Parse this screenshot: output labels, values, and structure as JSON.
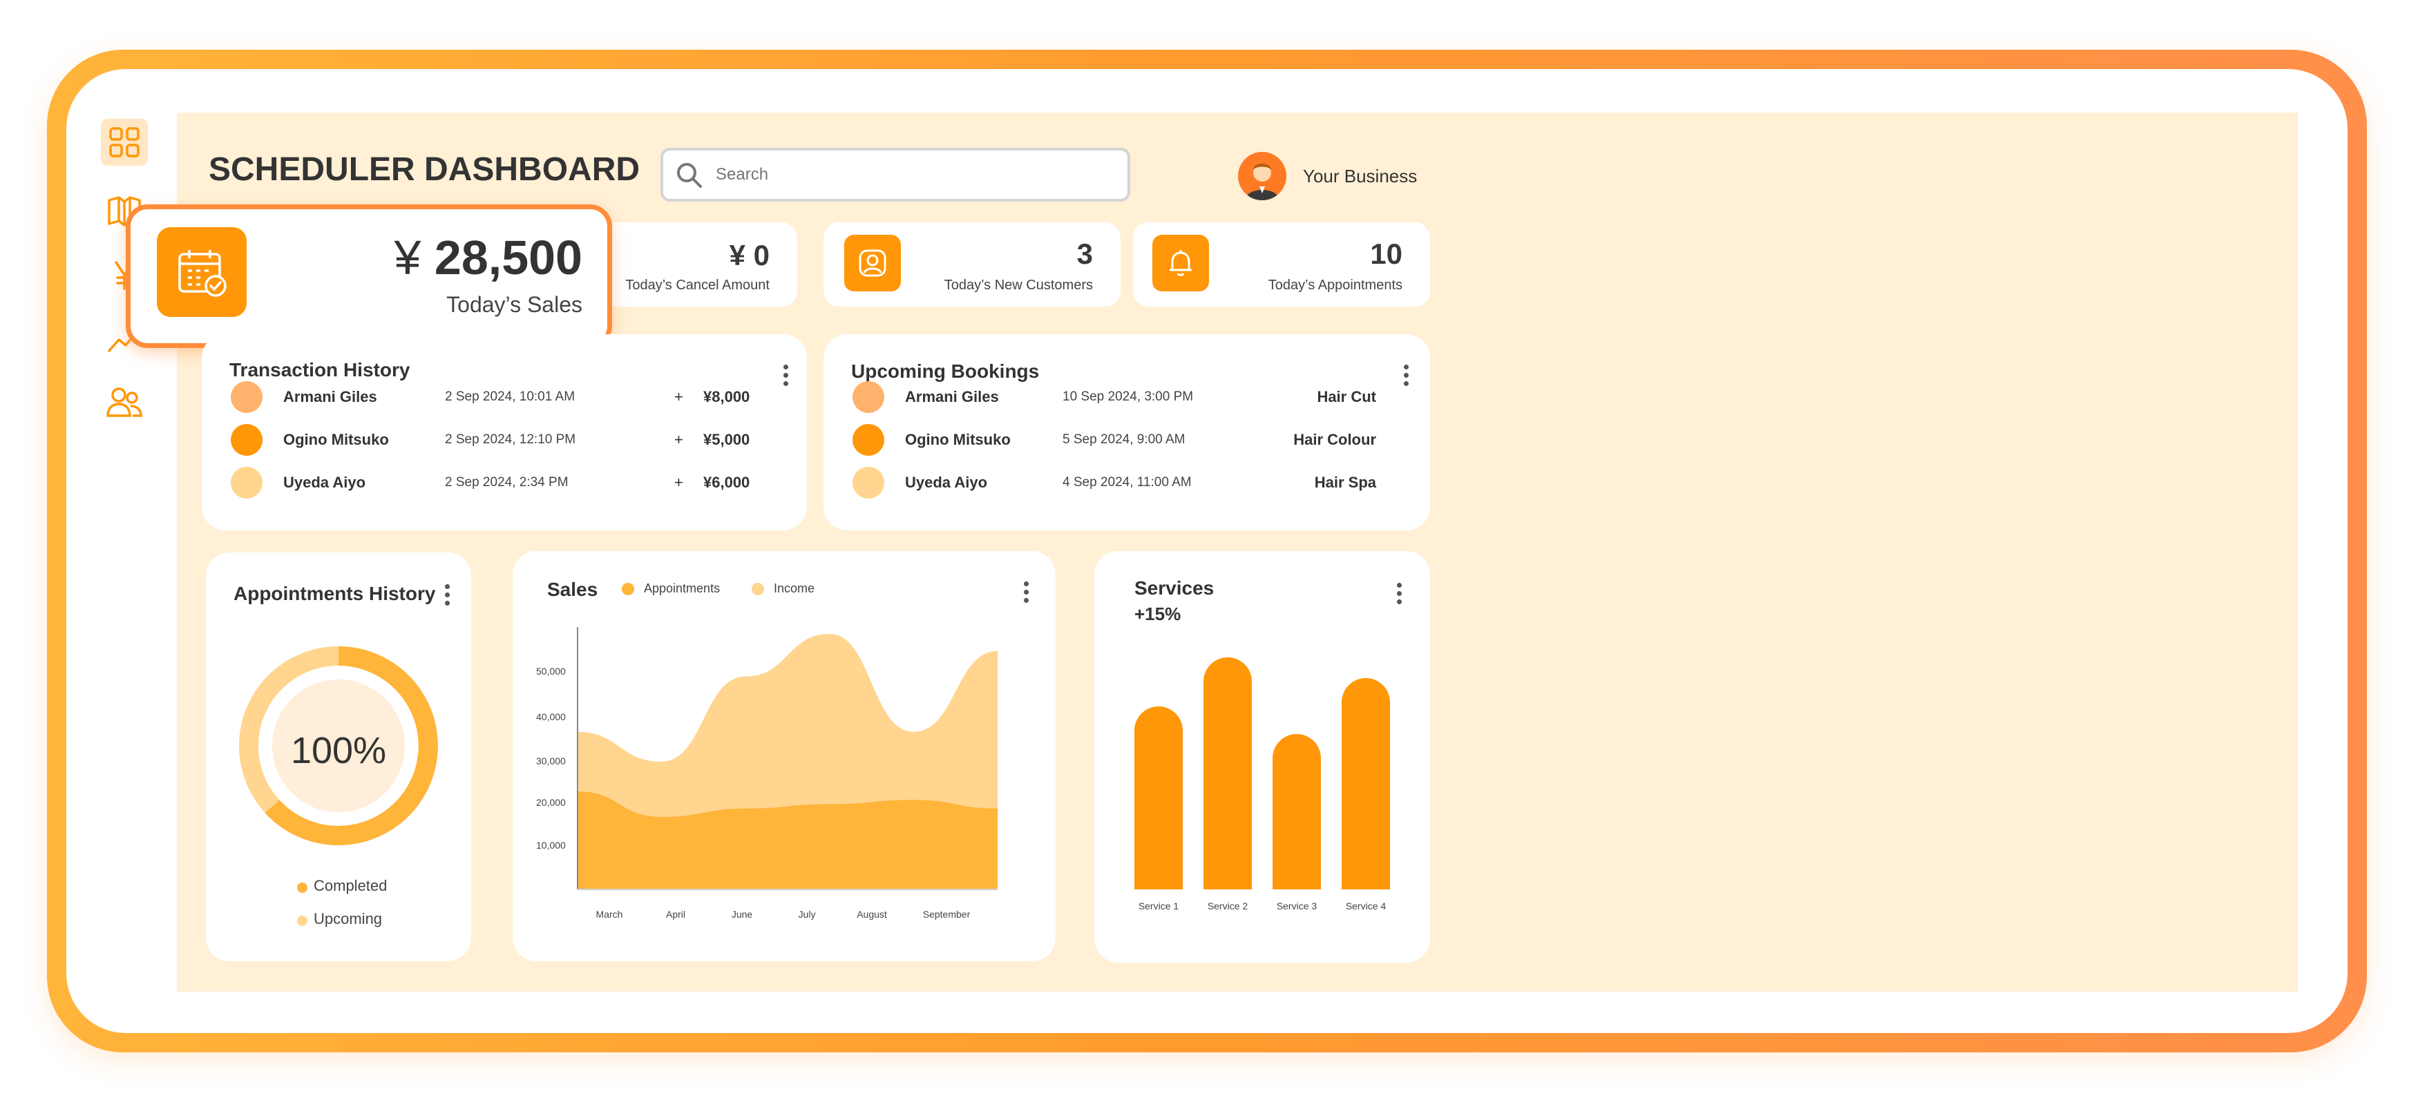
{
  "header": {
    "title": "SCHEDULER DASHBOARD",
    "search_placeholder": "Search",
    "business_name": "Your Business"
  },
  "sidebar": {
    "items": [
      {
        "icon": "grid-icon",
        "active": true
      },
      {
        "icon": "book-icon"
      },
      {
        "icon": "yen-icon"
      },
      {
        "icon": "trend-icon"
      },
      {
        "icon": "users-icon"
      }
    ]
  },
  "stats": {
    "sales": {
      "currency": "¥",
      "value": "28,500",
      "label": "Today’s Sales"
    },
    "cancel": {
      "currency": "¥",
      "value": "0",
      "label": "Today’s Cancel Amount"
    },
    "customers": {
      "value": "3",
      "label": "Today’s New Customers"
    },
    "appointments": {
      "value": "10",
      "label": "Today’s Appointments"
    }
  },
  "transactions": {
    "title": "Transaction History",
    "rows": [
      {
        "name": "Armani Giles",
        "date": "2 Sep 2024, 10:01 AM",
        "sign": "+",
        "amount": "¥8,000",
        "color": "#ffb26b"
      },
      {
        "name": "Ogino Mitsuko",
        "date": "2 Sep 2024, 12:10 PM",
        "sign": "+",
        "amount": "¥5,000",
        "color": "#ff9708"
      },
      {
        "name": "Uyeda Aiyo",
        "date": "2 Sep 2024, 2:34 PM",
        "sign": "+",
        "amount": "¥6,000",
        "color": "#ffd58f"
      }
    ]
  },
  "bookings": {
    "title": "Upcoming Bookings",
    "rows": [
      {
        "name": "Armani Giles",
        "date": "10 Sep 2024, 3:00 PM",
        "service": "Hair Cut",
        "color": "#ffb26b"
      },
      {
        "name": "Ogino Mitsuko",
        "date": "5 Sep 2024, 9:00 AM",
        "service": "Hair Colour",
        "color": "#ff9708"
      },
      {
        "name": "Uyeda Aiyo",
        "date": "4 Sep 2024, 11:00 AM",
        "service": "Hair Spa",
        "color": "#ffd58f"
      }
    ]
  },
  "appointments_history": {
    "title": "Appointments History",
    "center_value": "100%",
    "legend": [
      {
        "label": "Completed",
        "color": "#ffb43a"
      },
      {
        "label": "Upcoming",
        "color": "#ffd58f"
      }
    ]
  },
  "chart_data": [
    {
      "type": "area",
      "title": "Sales",
      "legend": [
        {
          "name": "Appointments",
          "color": "#ffb43a"
        },
        {
          "name": "Income",
          "color": "#ffd58f"
        }
      ],
      "x": [
        "March",
        "April",
        "June",
        "July",
        "August",
        "September"
      ],
      "yticks": [
        "10,000",
        "20,000",
        "30,000",
        "40,000",
        "50,000"
      ],
      "series": [
        {
          "name": "Income",
          "values": [
            37000,
            30000,
            50000,
            60000,
            37000,
            56000
          ]
        },
        {
          "name": "Appointments",
          "values": [
            23000,
            17000,
            19000,
            20000,
            21000,
            19000
          ]
        }
      ]
    },
    {
      "type": "bar",
      "title": "Services",
      "subtitle": "+15%",
      "categories": [
        "Service 1",
        "Service 2",
        "Service 3",
        "Service 4"
      ],
      "values": [
        0.79,
        1.0,
        0.67,
        0.91
      ]
    }
  ],
  "colors": {
    "accent": "#ff9708",
    "light": "#ffd58f",
    "background": "#fff0d6"
  }
}
